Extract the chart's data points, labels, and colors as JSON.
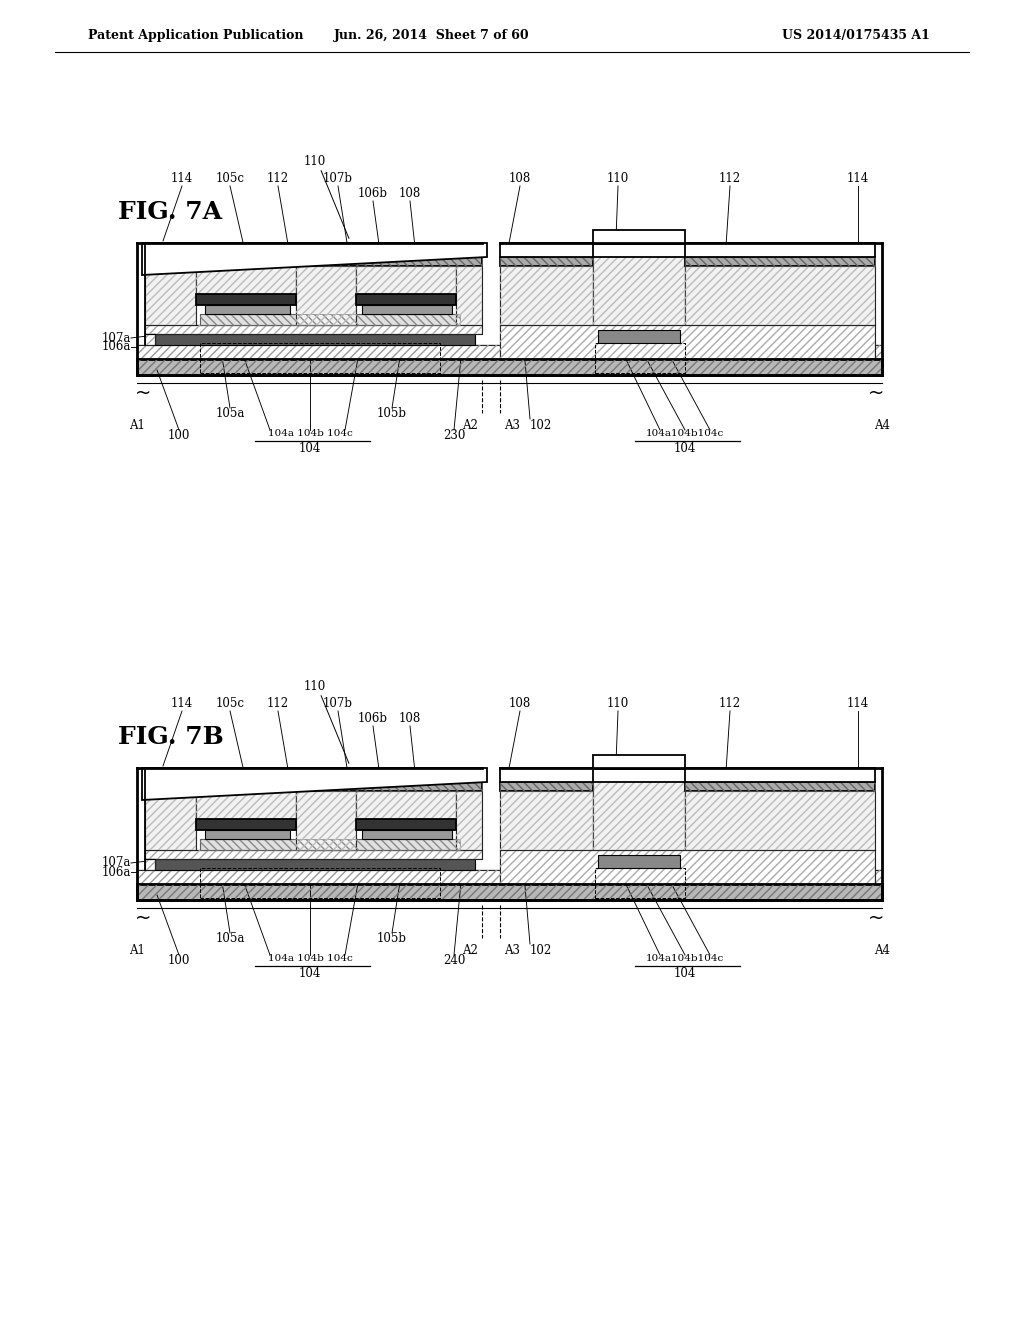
{
  "header_left": "Patent Application Publication",
  "header_mid": "Jun. 26, 2014  Sheet 7 of 60",
  "header_right": "US 2014/0175435 A1",
  "fig7a_label": "FIG. 7A",
  "fig7b_label": "FIG. 7B",
  "bg_color": "#ffffff",
  "lc": "#000000",
  "center_label_a": "230",
  "center_label_b": "240"
}
